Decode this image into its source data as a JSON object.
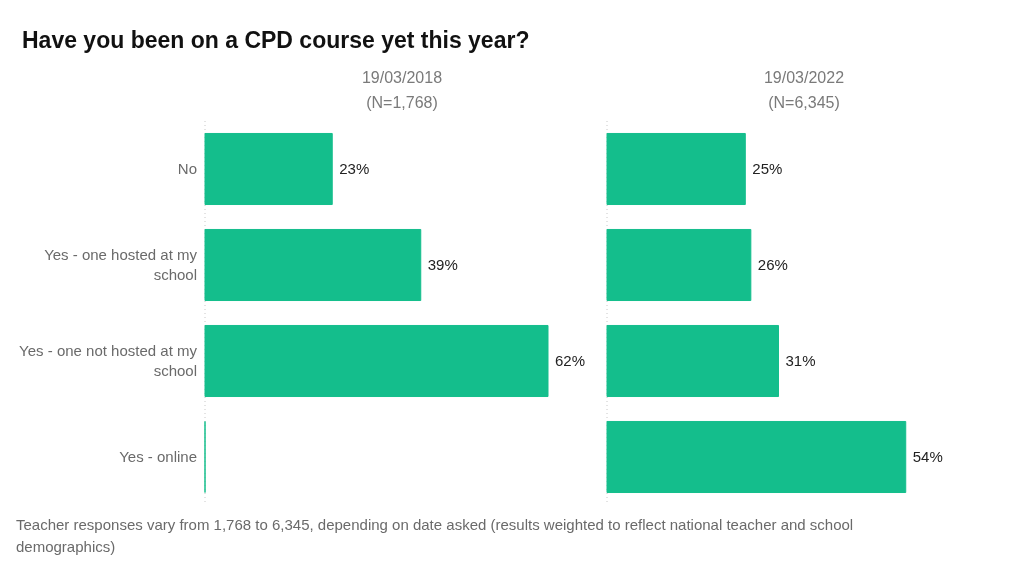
{
  "chart_data": [
    {
      "type": "bar",
      "orientation": "horizontal",
      "title": "Have you been on a CPD course yet this year?",
      "subtitle": "19/03/2018\n(N=1,768)",
      "categories": [
        "No",
        "Yes - one hosted at my school",
        "Yes - one not hosted at my school",
        "Yes - online"
      ],
      "values": [
        23,
        39,
        62,
        0
      ],
      "value_labels": [
        "23%",
        "39%",
        "62%",
        null
      ],
      "color": "#14be8c",
      "tick_labels": "y",
      "annotations": [
        "Teacher responses vary from 1,768 to 6,345, depending on date asked (results weighted to reflect national teacher and school demographics)"
      ]
    },
    {
      "type": "bar",
      "orientation": "horizontal",
      "subtitle": "19/03/2022\n(N=6,345)",
      "categories": [
        null,
        null,
        null,
        null
      ],
      "values": [
        25,
        26,
        31,
        54
      ],
      "value_labels": [
        "25%",
        "26%",
        "31%",
        "54%"
      ],
      "color": "#14be8c"
    }
  ]
}
